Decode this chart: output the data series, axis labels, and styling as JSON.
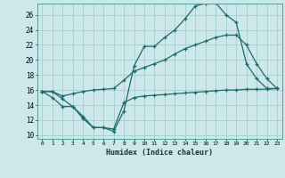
{
  "xlabel": "Humidex (Indice chaleur)",
  "bg_color": "#cce8ea",
  "grid_color": "#aacccc",
  "line_color": "#1a6b6b",
  "xlim": [
    -0.5,
    23.5
  ],
  "ylim": [
    9.5,
    27.5
  ],
  "yticks": [
    10,
    12,
    14,
    16,
    18,
    20,
    22,
    24,
    26
  ],
  "xticks": [
    0,
    1,
    2,
    3,
    4,
    5,
    6,
    7,
    8,
    9,
    10,
    11,
    12,
    13,
    14,
    15,
    16,
    17,
    18,
    19,
    20,
    21,
    22,
    23
  ],
  "line1_x": [
    0,
    1,
    2,
    3,
    4,
    5,
    6,
    7,
    8,
    9,
    10,
    11,
    12,
    13,
    14,
    15,
    16,
    17,
    18,
    19,
    20,
    21,
    22,
    23
  ],
  "line1_y": [
    15.8,
    15.8,
    14.8,
    13.8,
    12.2,
    11.0,
    11.0,
    10.5,
    13.2,
    19.2,
    21.8,
    21.8,
    23.0,
    24.0,
    25.5,
    27.2,
    27.5,
    27.6,
    26.0,
    25.0,
    19.5,
    17.5,
    16.2,
    16.2
  ],
  "line2_x": [
    0,
    1,
    2,
    3,
    4,
    5,
    6,
    7,
    8,
    9,
    10,
    11,
    12,
    13,
    14,
    15,
    16,
    17,
    18,
    19,
    20,
    21,
    22,
    23
  ],
  "line2_y": [
    15.8,
    15.8,
    15.2,
    15.5,
    15.8,
    16.0,
    16.1,
    16.2,
    17.3,
    18.5,
    19.0,
    19.5,
    20.0,
    20.8,
    21.5,
    22.0,
    22.5,
    23.0,
    23.3,
    23.3,
    22.0,
    19.5,
    17.5,
    16.2
  ],
  "line3_x": [
    0,
    1,
    2,
    3,
    4,
    5,
    6,
    7,
    8,
    9,
    10,
    11,
    12,
    13,
    14,
    15,
    16,
    17,
    18,
    19,
    20,
    21,
    22,
    23
  ],
  "line3_y": [
    15.8,
    15.0,
    13.8,
    13.8,
    12.5,
    11.0,
    11.0,
    10.8,
    14.3,
    15.0,
    15.2,
    15.3,
    15.4,
    15.5,
    15.6,
    15.7,
    15.8,
    15.9,
    16.0,
    16.0,
    16.1,
    16.1,
    16.1,
    16.2
  ]
}
